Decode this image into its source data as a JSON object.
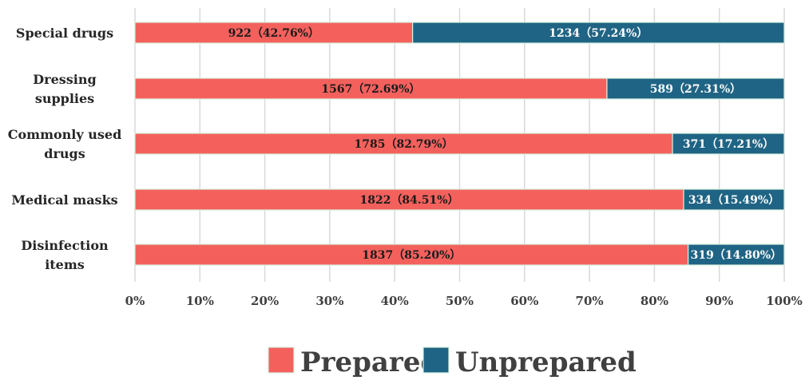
{
  "chart_data": {
    "type": "bar",
    "orientation": "horizontal",
    "stacked": "percent",
    "categories": [
      [
        "Special drugs"
      ],
      [
        "Dressing",
        "supplies"
      ],
      [
        "Commonly used",
        "drugs"
      ],
      [
        "Medical masks"
      ],
      [
        "Disinfection",
        "items"
      ]
    ],
    "series": [
      {
        "name": "Prepared",
        "color": "#F4615D",
        "counts": [
          922,
          1567,
          1785,
          1822,
          1837
        ],
        "values": [
          42.76,
          72.69,
          82.79,
          84.51,
          85.2
        ],
        "labels": [
          "922（42.76%）",
          "1567（72.69%）",
          "1785（82.79%）",
          "1822（84.51%）",
          "1837（85.20%）"
        ]
      },
      {
        "name": "Unprepared",
        "color": "#1F6484",
        "counts": [
          1234,
          589,
          371,
          334,
          319
        ],
        "values": [
          57.24,
          27.31,
          17.21,
          15.49,
          14.8
        ],
        "labels": [
          "1234（57.24%）",
          "589（27.31%）",
          "371（17.21%）",
          "334（15.49%）",
          "319（14.80%）"
        ]
      }
    ],
    "x_ticks": [
      "0%",
      "10%",
      "20%",
      "30%",
      "40%",
      "50%",
      "60%",
      "70%",
      "80%",
      "90%",
      "100%"
    ],
    "xlim": [
      0,
      100
    ],
    "grid": "vertical",
    "legend_position": "bottom"
  }
}
